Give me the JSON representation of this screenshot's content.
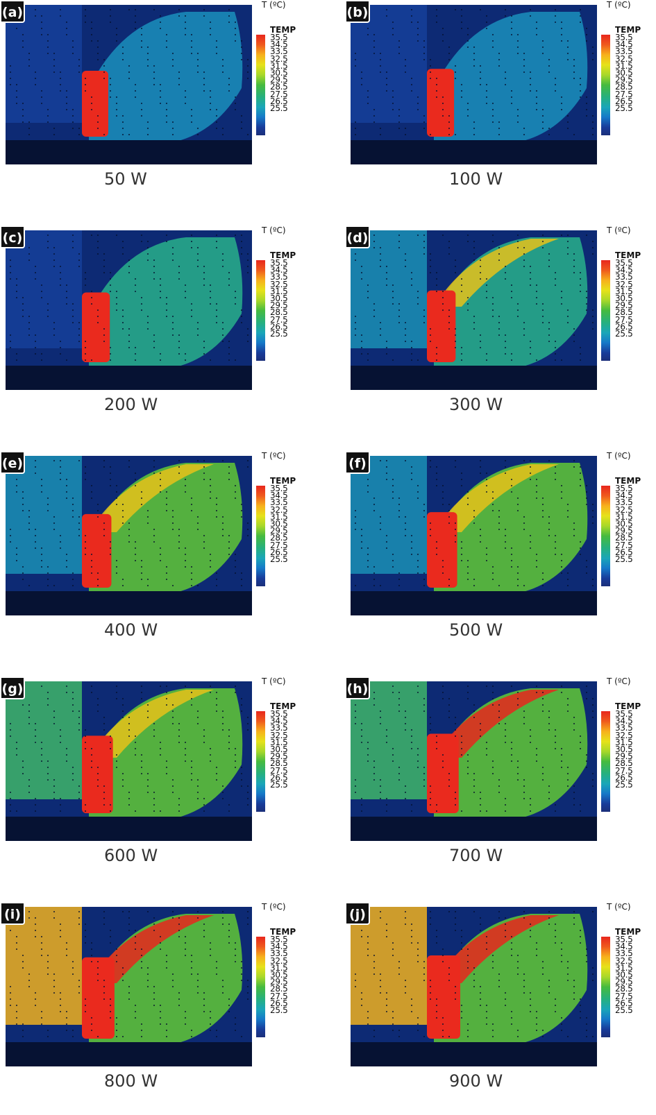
{
  "colorbar": {
    "unit_label": "T (ºC)",
    "title": "TEMP",
    "ticks": [
      "35.5",
      "34.5",
      "33.5",
      "32.5",
      "31.5",
      "30.5",
      "29.5",
      "28.5",
      "27.5",
      "26.5",
      "25.5"
    ],
    "colors": [
      "#e8271d",
      "#f7b01c",
      "#e6e21a",
      "#46bb3f",
      "#1aa6b8",
      "#183c9a"
    ]
  },
  "panels": [
    {
      "tag": "(a)",
      "power": "50 W"
    },
    {
      "tag": "(b)",
      "power": "100 W"
    },
    {
      "tag": "(c)",
      "power": "200 W"
    },
    {
      "tag": "(d)",
      "power": "300 W"
    },
    {
      "tag": "(e)",
      "power": "400 W"
    },
    {
      "tag": "(f)",
      "power": "500 W"
    },
    {
      "tag": "(g)",
      "power": "600 W"
    },
    {
      "tag": "(h)",
      "power": "700 W"
    },
    {
      "tag": "(i)",
      "power": "800 W"
    },
    {
      "tag": "(j)",
      "power": "900 W"
    }
  ]
}
